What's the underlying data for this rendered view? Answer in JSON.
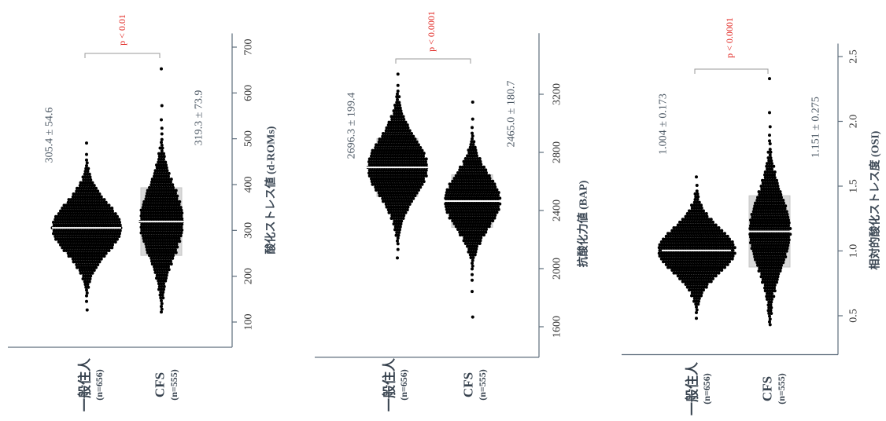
{
  "chart_data": [
    {
      "type": "scatter",
      "style": "beeswarm",
      "ylabel": "酸化ストレス値 (d-ROMs)",
      "yticks": [
        100,
        200,
        300,
        400,
        500,
        600,
        700
      ],
      "ytick_labels": [
        "100",
        "200",
        "300",
        "400",
        "500",
        "600",
        "700"
      ],
      "ylim": [
        45,
        730
      ],
      "p_label": "p < 0.01",
      "groups": [
        {
          "label": "一般住人",
          "n_label": "(n=656)",
          "n": 656,
          "mean": 305.4,
          "sd": 54.6,
          "min": 125,
          "max": 490,
          "stat_label": "305.4 ± 54.6"
        },
        {
          "label": "CFS",
          "n_label": "(n=555)",
          "n": 555,
          "mean": 319.3,
          "sd": 73.9,
          "min": 120,
          "max": 650,
          "stat_label": "319.3 ± 73.9"
        }
      ]
    },
    {
      "type": "scatter",
      "style": "beeswarm",
      "ylabel": "抗酸化力値 (BAP)",
      "yticks": [
        1600,
        2000,
        2400,
        2800,
        3200
      ],
      "ytick_labels": [
        "1600",
        "2000",
        "2400",
        "2800",
        "3200"
      ],
      "ylim": [
        1390,
        3620
      ],
      "p_label": "p < 0.0001",
      "groups": [
        {
          "label": "一般住人",
          "n_label": "(n=656)",
          "n": 656,
          "mean": 2696.3,
          "sd": 199.4,
          "min": 2075,
          "max": 3335,
          "stat_label": "2696.3 ± 199.4"
        },
        {
          "label": "CFS",
          "n_label": "(n=555)",
          "n": 555,
          "mean": 2465.0,
          "sd": 180.7,
          "min": 1660,
          "max": 3155,
          "stat_label": "2465.0 ± 180.7"
        }
      ]
    },
    {
      "type": "scatter",
      "style": "beeswarm",
      "ylabel": "相対的酸化ストレス度 (OSI)",
      "yticks": [
        0.5,
        1.0,
        1.5,
        2.0,
        2.5
      ],
      "ytick_labels": [
        "0.5",
        "1.0",
        "1.5",
        "2.0",
        "2.5"
      ],
      "ylim": [
        0.2,
        2.6
      ],
      "p_label": "p < 0.0001",
      "groups": [
        {
          "label": "一般住人",
          "n_label": "(n=656)",
          "n": 656,
          "mean": 1.004,
          "sd": 0.173,
          "min": 0.48,
          "max": 1.57,
          "stat_label": "1.004 ± 0.173"
        },
        {
          "label": "CFS",
          "n_label": "(n=555)",
          "n": 555,
          "mean": 1.151,
          "sd": 0.275,
          "min": 0.5,
          "max": 2.34,
          "stat_label": "1.151 ± 0.275"
        }
      ]
    }
  ],
  "colors": {
    "dot": "#000000",
    "mean_line": "#ffffff",
    "sd_box": "#d9d9d9",
    "sd_box_stroke": "#c6c6c6",
    "p_value": "#e0201b",
    "axis": "#5e6d7c",
    "bracket": "#9a9a9a"
  }
}
